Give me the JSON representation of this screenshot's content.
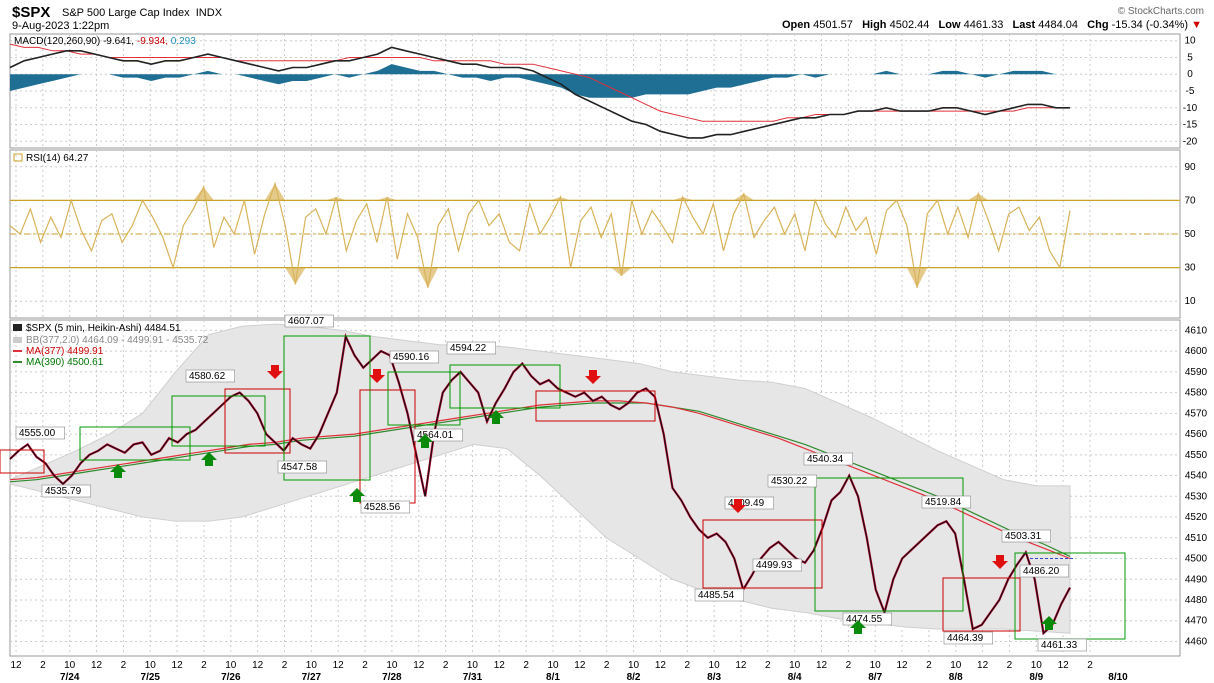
{
  "header": {
    "symbol": "$SPX",
    "name": "S&P 500 Large Cap Index",
    "exchange": "INDX",
    "date": "9-Aug-2023 1:22pm",
    "brand": "© StockCharts.com",
    "open_label": "Open",
    "open": "4501.57",
    "high_label": "High",
    "high": "4502.44",
    "low_label": "Low",
    "low": "4461.33",
    "last_label": "Last",
    "last": "4484.04",
    "chg_label": "Chg",
    "chg": "-15.34 (-0.34%)"
  },
  "colors": {
    "macd_hist": "#1f6e93",
    "rsi": "#d8b35a",
    "ma377": "#e0303a",
    "ma390": "#2e8b2e",
    "bb": "#e6e6e6",
    "up_arrow": "#0a8a0a",
    "down_arrow": "#e01010"
  },
  "chart_data": [
    {
      "type": "area",
      "panel": "macd",
      "legend": "MACD(120,260,90)",
      "legend_values": [
        "-9.641",
        "-9.934",
        "0.293"
      ],
      "ylim": [
        -22,
        12
      ],
      "yticks": [
        10,
        5,
        0,
        -5,
        -10,
        -15,
        -20
      ],
      "grid": true,
      "series": [
        {
          "values": [
            2,
            4,
            5,
            6,
            7,
            7,
            6,
            5,
            4,
            4,
            3,
            4,
            4,
            5,
            6,
            5,
            4,
            3,
            2,
            1,
            2,
            2,
            3,
            4,
            4,
            5,
            6,
            8,
            7,
            6,
            5,
            4,
            3,
            3,
            2,
            2,
            2,
            1,
            -1,
            -3,
            -6,
            -8,
            -10,
            -12,
            -14,
            -15,
            -17,
            -18,
            -19,
            -19,
            -18,
            -18,
            -17,
            -16,
            -15,
            -14,
            -13,
            -13,
            -12,
            -12,
            -11,
            -11,
            -10,
            -11,
            -11,
            -11,
            -10,
            -10,
            -11,
            -12,
            -11,
            -10,
            -9,
            -9,
            -10,
            -10
          ]
        },
        {
          "values": [
            9,
            8,
            8,
            7,
            7,
            6,
            6,
            5,
            5,
            5,
            5,
            5,
            5,
            5,
            5,
            5,
            4,
            4,
            4,
            4,
            4,
            4,
            4,
            4,
            5,
            5,
            5,
            5,
            5,
            5,
            4,
            4,
            4,
            4,
            4,
            3,
            3,
            3,
            2,
            1,
            0,
            -1,
            -3,
            -5,
            -7,
            -9,
            -11,
            -12,
            -13,
            -14,
            -14,
            -14,
            -14,
            -14,
            -14,
            -13,
            -13,
            -12,
            -12,
            -12,
            -11,
            -11,
            -11,
            -11,
            -11,
            -11,
            -11,
            -11,
            -11,
            -11,
            -11,
            -11,
            -10,
            -10,
            -10,
            -10
          ]
        },
        {
          "values": [
            -5,
            -4,
            -3,
            -2,
            -1,
            0,
            0,
            0,
            -1,
            -1,
            -2,
            -1,
            -1,
            0,
            1,
            0,
            0,
            -1,
            -2,
            -3,
            -2,
            -2,
            -1,
            0,
            -1,
            0,
            1,
            3,
            2,
            1,
            1,
            0,
            -1,
            -1,
            -2,
            -1,
            -1,
            -2,
            -3,
            -4,
            -6,
            -7,
            -7,
            -7,
            -7,
            -6,
            -6,
            -6,
            -6,
            -5,
            -4,
            -4,
            -3,
            -2,
            -1,
            -1,
            0,
            -1,
            0,
            0,
            0,
            0,
            1,
            0,
            0,
            0,
            1,
            1,
            0,
            -1,
            0,
            1,
            1,
            1,
            0,
            0
          ]
        }
      ]
    },
    {
      "type": "line",
      "panel": "rsi",
      "legend": "RSI(14)",
      "legend_value": "64.27",
      "ylim": [
        0,
        100
      ],
      "yticks": [
        90,
        70,
        50,
        30,
        10
      ],
      "overbought": 70,
      "midline": 50,
      "oversold": 30,
      "values": [
        55,
        50,
        65,
        45,
        60,
        48,
        70,
        52,
        40,
        58,
        62,
        45,
        55,
        70,
        60,
        48,
        30,
        55,
        65,
        78,
        42,
        60,
        50,
        70,
        38,
        62,
        80,
        55,
        20,
        60,
        65,
        50,
        72,
        40,
        58,
        68,
        45,
        72,
        35,
        62,
        48,
        18,
        55,
        65,
        40,
        62,
        70,
        55,
        62,
        45,
        40,
        68,
        50,
        60,
        72,
        30,
        58,
        66,
        48,
        62,
        25,
        70,
        50,
        64,
        55,
        45,
        72,
        60,
        50,
        68,
        40,
        62,
        74,
        48,
        58,
        66,
        50,
        62,
        40,
        70,
        56,
        48,
        66,
        52,
        60,
        38,
        64,
        70,
        55,
        18,
        62,
        70,
        50,
        66,
        48,
        74,
        58,
        40,
        62,
        66,
        52,
        60,
        40,
        30,
        64
      ]
    },
    {
      "type": "line",
      "panel": "price",
      "legend": "$SPX (5 min, Heikin-Ashi)",
      "legend_value": "4484.51",
      "bb_legend": "BB(377,2.0)",
      "bb_values": "4464.09 - 4499.91 - 4535.72",
      "ma1_legend": "MA(377)",
      "ma1_value": "4499.91",
      "ma2_legend": "MA(390)",
      "ma2_value": "4500.61",
      "ylim": [
        4453,
        4615
      ],
      "yticks": [
        4610,
        4600,
        4590,
        4580,
        4570,
        4560,
        4550,
        4540,
        4530,
        4520,
        4510,
        4500,
        4490,
        4480,
        4470,
        4460
      ],
      "x_tick_labels": [
        "12",
        "2",
        "10",
        "12",
        "2",
        "10",
        "12",
        "2",
        "10",
        "12",
        "2",
        "10",
        "12",
        "2",
        "10",
        "12",
        "2",
        "10",
        "12",
        "2",
        "10",
        "12",
        "2",
        "10",
        "12",
        "2",
        "10",
        "12",
        "2",
        "10",
        "12",
        "2",
        "10",
        "12",
        "2",
        "10",
        "12",
        "2",
        "10",
        "12",
        "2"
      ],
      "x_date_labels": [
        "7/24",
        "7/25",
        "7/26",
        "7/27",
        "7/28",
        "7/31",
        "8/1",
        "8/2",
        "8/3",
        "8/4",
        "8/7",
        "8/8",
        "8/9",
        "8/10"
      ],
      "price": [
        4548,
        4552,
        4555,
        4549,
        4546,
        4540,
        4536,
        4540,
        4546,
        4550,
        4552,
        4555,
        4553,
        4551,
        4555,
        4556,
        4550,
        4552,
        4558,
        4556,
        4560,
        4562,
        4566,
        4570,
        4574,
        4578,
        4580,
        4576,
        4570,
        4560,
        4556,
        4552,
        4558,
        4555,
        4553,
        4560,
        4570,
        4580,
        4607,
        4598,
        4592,
        4596,
        4600,
        4598,
        4585,
        4570,
        4550,
        4530,
        4560,
        4580,
        4586,
        4590,
        4585,
        4580,
        4566,
        4575,
        4582,
        4590,
        4594,
        4588,
        4584,
        4586,
        4582,
        4580,
        4578,
        4580,
        4576,
        4578,
        4574,
        4572,
        4575,
        4580,
        4582,
        4578,
        4560,
        4534,
        4528,
        4520,
        4514,
        4510,
        4512,
        4508,
        4500,
        4485,
        4492,
        4500,
        4505,
        4508,
        4504,
        4500,
        4498,
        4504,
        4515,
        4528,
        4532,
        4540,
        4530,
        4510,
        4485,
        4474,
        4490,
        4500,
        4504,
        4508,
        4512,
        4516,
        4518,
        4512,
        4490,
        4466,
        4468,
        4474,
        4480,
        4490,
        4497,
        4503,
        4490,
        4464,
        4468,
        4478,
        4486
      ],
      "ma377": [
        4538,
        4539,
        4541,
        4543,
        4545,
        4547,
        4549,
        4551,
        4553,
        4555,
        4556,
        4558,
        4559,
        4560,
        4562,
        4564,
        4566,
        4568,
        4570,
        4572,
        4574,
        4575,
        4576,
        4576,
        4575,
        4573,
        4570,
        4566,
        4562,
        4558,
        4553,
        4548,
        4543,
        4538,
        4533,
        4528,
        4522,
        4516,
        4510,
        4505,
        4500
      ],
      "ma390": [
        4537,
        4538,
        4540,
        4542,
        4544,
        4546,
        4548,
        4550,
        4552,
        4554,
        4555,
        4557,
        4558,
        4559,
        4561,
        4563,
        4565,
        4567,
        4569,
        4571,
        4573,
        4574,
        4575,
        4575,
        4575,
        4573,
        4571,
        4567,
        4563,
        4559,
        4555,
        4550,
        4545,
        4540,
        4535,
        4530,
        4524,
        4518,
        4512,
        4507,
        4501
      ],
      "bb_upper": [
        4538,
        4545,
        4552,
        4560,
        4570,
        4590,
        4608,
        4612,
        4613,
        4612,
        4610,
        4607,
        4605,
        4603,
        4603,
        4602,
        4600,
        4598,
        4596,
        4594,
        4590,
        4588,
        4586,
        4585,
        4582,
        4575,
        4568,
        4560,
        4552,
        4545,
        4538,
        4535,
        4535
      ],
      "bb_lower": [
        4536,
        4532,
        4528,
        4524,
        4520,
        4518,
        4518,
        4520,
        4525,
        4530,
        4535,
        4540,
        4545,
        4550,
        4555,
        4553,
        4540,
        4525,
        4510,
        4500,
        4490,
        4484,
        4480,
        4476,
        4474,
        4471,
        4469,
        4467,
        4466,
        4466,
        4466,
        4465,
        4464
      ],
      "annotations": [
        {
          "label": "4555.00"
        },
        {
          "label": "4535.79"
        },
        {
          "label": "4580.62"
        },
        {
          "label": "4607.07"
        },
        {
          "label": "4547.58"
        },
        {
          "label": "4590.16"
        },
        {
          "label": "4528.56"
        },
        {
          "label": "4594.22"
        },
        {
          "label": "4564.01"
        },
        {
          "label": "4540.34"
        },
        {
          "label": "4530.22"
        },
        {
          "label": "4509.49"
        },
        {
          "label": "4499.93"
        },
        {
          "label": "4485.54"
        },
        {
          "label": "4519.84"
        },
        {
          "label": "4474.55"
        },
        {
          "label": "4503.31"
        },
        {
          "label": "4486.20"
        },
        {
          "label": "4464.39"
        },
        {
          "label": "4461.33"
        }
      ]
    }
  ]
}
